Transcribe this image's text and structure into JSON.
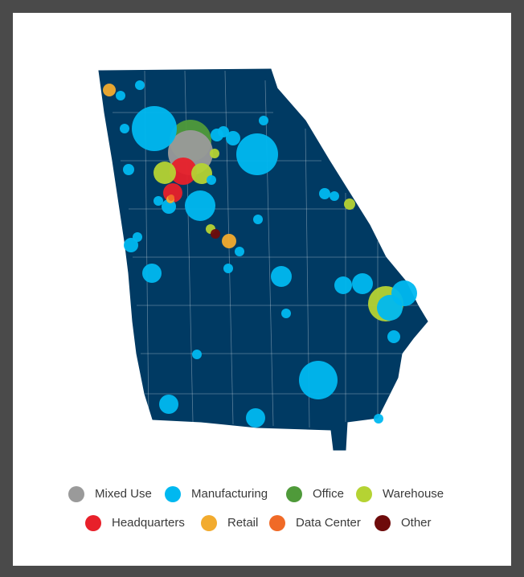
{
  "legend": {
    "items": [
      {
        "name": "Mixed Use",
        "color": "#9a9a9a"
      },
      {
        "name": "Manufacturing",
        "color": "#00b8f0"
      },
      {
        "name": "Office",
        "color": "#4f9a3a"
      },
      {
        "name": "Warehouse",
        "color": "#b5d333"
      },
      {
        "name": "Headquarters",
        "color": "#e8202a"
      },
      {
        "name": "Retail",
        "color": "#f2ab2e"
      },
      {
        "name": "Data Center",
        "color": "#f06a27"
      },
      {
        "name": "Other",
        "color": "#6e0b0b"
      }
    ]
  }
}
